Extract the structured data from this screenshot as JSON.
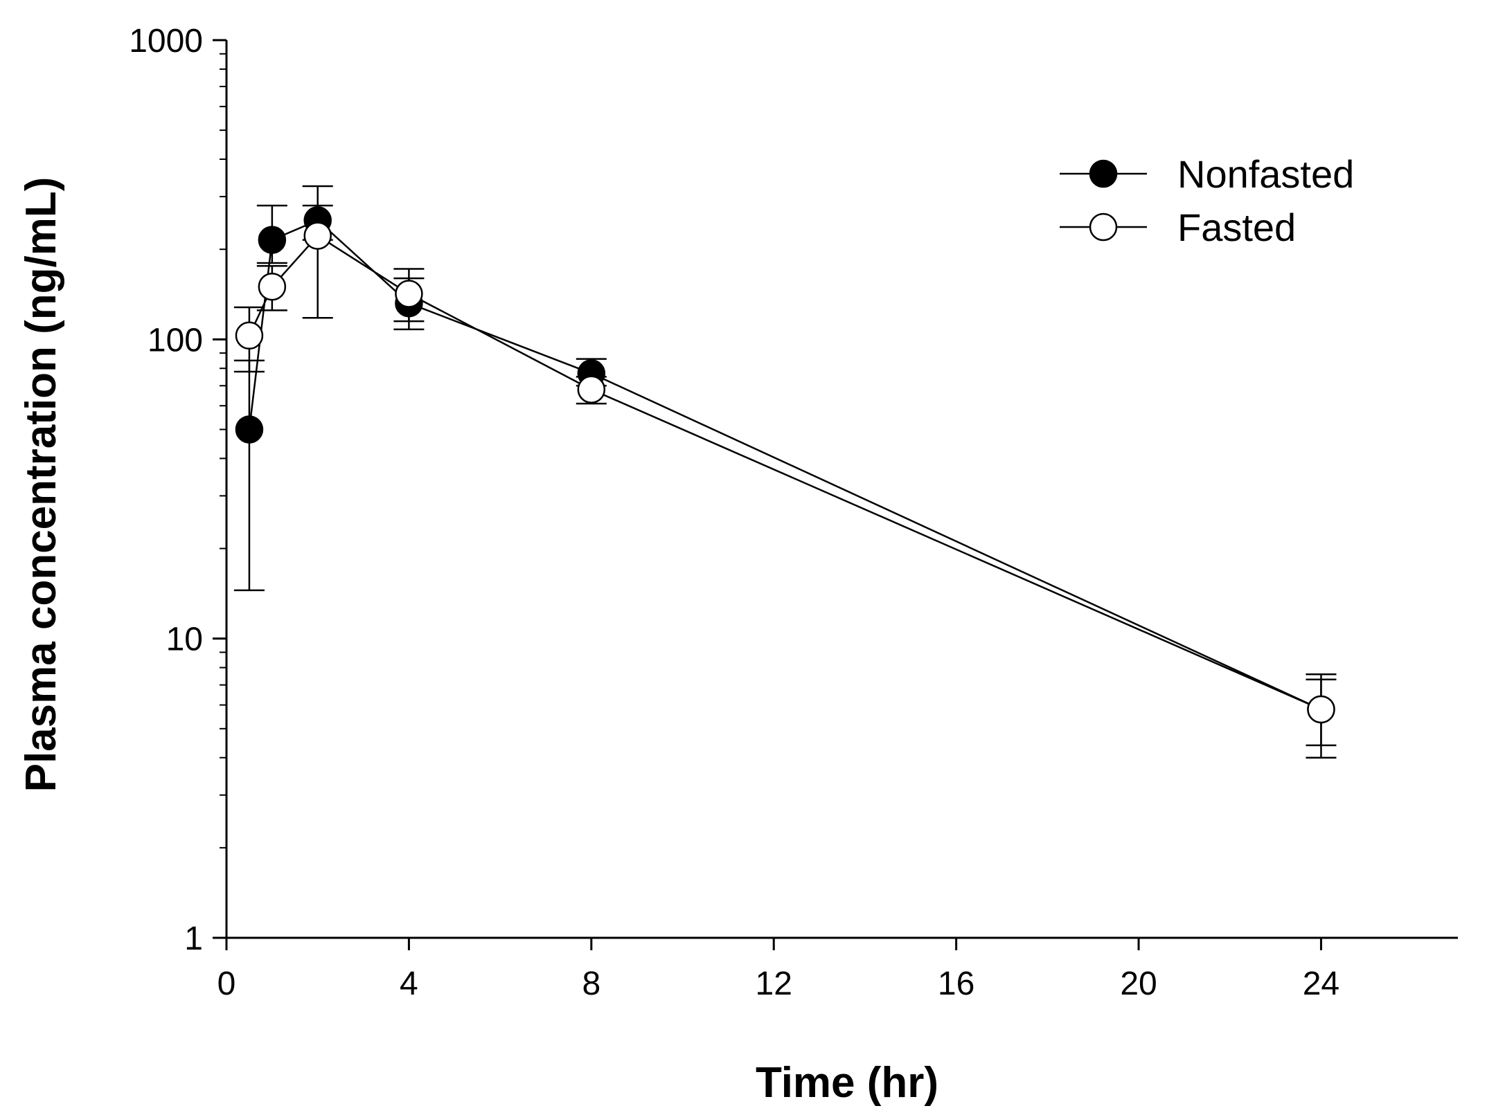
{
  "chart_data": {
    "type": "line",
    "title": "",
    "xlabel": "Time (hr)",
    "ylabel": "Plasma concentration (ng/mL)",
    "xlim": [
      0,
      27
    ],
    "ylim": [
      1,
      1000
    ],
    "yscale": "log",
    "xticks": [
      0,
      4,
      8,
      12,
      16,
      20,
      24
    ],
    "xtick_labels": [
      "0",
      "4",
      "8",
      "12",
      "16",
      "20",
      "24"
    ],
    "yticks": [
      1,
      10,
      100,
      1000
    ],
    "ytick_labels": [
      "1",
      "10",
      "100",
      "1000"
    ],
    "legend_position": "top-right",
    "grid": false,
    "series": [
      {
        "name": "Nonfasted",
        "marker": "filled-circle",
        "x": [
          0.5,
          1,
          2,
          4,
          8,
          24
        ],
        "y": [
          50,
          215,
          250,
          132,
          77,
          5.8
        ],
        "err_low": [
          14.5,
          180,
          215,
          108,
          70,
          4.0
        ],
        "err_high": [
          85,
          280,
          325,
          160,
          86,
          7.6
        ]
      },
      {
        "name": "Fasted",
        "marker": "open-circle",
        "x": [
          0.5,
          1,
          2,
          4,
          8,
          24
        ],
        "y": [
          103,
          150,
          222,
          142,
          68,
          5.8
        ],
        "err_low": [
          78,
          125,
          118,
          115,
          61,
          4.4
        ],
        "err_high": [
          128,
          176,
          280,
          172,
          75,
          7.3
        ]
      }
    ],
    "colors": {
      "line": "#000000",
      "filled": "#000000",
      "open": "#ffffff"
    }
  }
}
